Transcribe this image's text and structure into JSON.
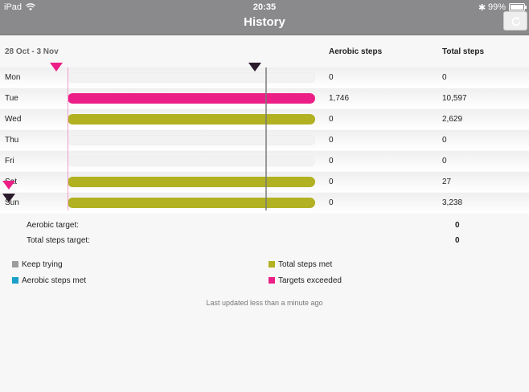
{
  "status": {
    "carrier": "iPad",
    "time": "20:35",
    "battery": "99%"
  },
  "nav": {
    "title": "History"
  },
  "table": {
    "date_range": "28 Oct - 3 Nov",
    "headers": {
      "aerobic": "Aerobic steps",
      "total": "Total steps"
    },
    "rows": [
      {
        "day": "Mon",
        "aerobic": "0",
        "total": "0",
        "bar_fill": 0,
        "bar_color": "none"
      },
      {
        "day": "Tue",
        "aerobic": "1,746",
        "total": "10,597",
        "bar_fill": 1.0,
        "bar_color": "#ec1f86"
      },
      {
        "day": "Wed",
        "aerobic": "0",
        "total": "2,629",
        "bar_fill": 1.0,
        "bar_color": "#b1b122"
      },
      {
        "day": "Thu",
        "aerobic": "0",
        "total": "0",
        "bar_fill": 0,
        "bar_color": "none"
      },
      {
        "day": "Fri",
        "aerobic": "0",
        "total": "0",
        "bar_fill": 0,
        "bar_color": "none"
      },
      {
        "day": "Sat",
        "aerobic": "0",
        "total": "27",
        "bar_fill": 1.0,
        "bar_color": "#b1b122"
      },
      {
        "day": "Sun",
        "aerobic": "0",
        "total": "3,238",
        "bar_fill": 1.0,
        "bar_color": "#b1b122"
      }
    ]
  },
  "targets": {
    "aerobic_label": "Aerobic target:",
    "aerobic_value": "0",
    "total_label": "Total steps target:",
    "total_value": "0"
  },
  "legend": {
    "keep_trying": "Keep trying",
    "aerobic_met": "Aerobic steps met",
    "total_met": "Total steps met",
    "exceeded": "Targets exceeded"
  },
  "colors": {
    "keep_trying": "#9c9c9c",
    "aerobic_met": "#1aa0c8",
    "total_met": "#b1b122",
    "exceeded": "#ec1f86"
  },
  "footer": {
    "updated": "Last updated less than a minute ago"
  }
}
